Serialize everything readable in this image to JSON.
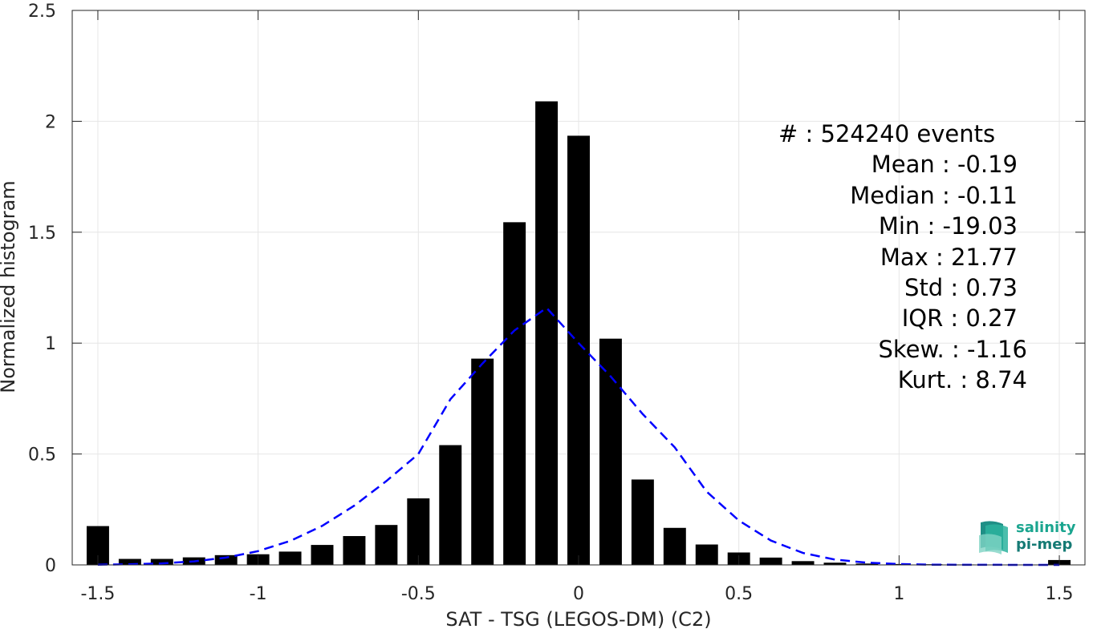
{
  "chart_data": {
    "type": "bar",
    "xlabel": "SAT - TSG (LEGOS-DM) (C2)",
    "ylabel": "Normalized histogram",
    "xlim": [
      -1.58,
      1.58
    ],
    "ylim": [
      0,
      2.5
    ],
    "xticks": [
      -1.5,
      -1,
      -0.5,
      0,
      0.5,
      1,
      1.5
    ],
    "xtick_labels": [
      "-1.5",
      "-1",
      "-0.5",
      "0",
      "0.5",
      "1",
      "1.5"
    ],
    "yticks": [
      0,
      0.5,
      1,
      1.5,
      2,
      2.5
    ],
    "ytick_labels": [
      "0",
      "0.5",
      "1",
      "1.5",
      "2",
      "2.5"
    ],
    "grid": true,
    "bar_color": "#000000",
    "bar_width": 0.07,
    "x": [
      -1.5,
      -1.4,
      -1.3,
      -1.2,
      -1.1,
      -1.0,
      -0.9,
      -0.8,
      -0.7,
      -0.6,
      -0.5,
      -0.4,
      -0.3,
      -0.2,
      -0.1,
      0.0,
      0.1,
      0.2,
      0.3,
      0.4,
      0.5,
      0.6,
      0.7,
      0.8,
      0.9,
      1.0,
      1.1,
      1.2,
      1.3,
      1.4,
      1.5
    ],
    "values": [
      0.175,
      0.027,
      0.027,
      0.034,
      0.044,
      0.048,
      0.06,
      0.09,
      0.13,
      0.18,
      0.3,
      0.54,
      0.93,
      1.545,
      2.09,
      1.935,
      1.02,
      0.385,
      0.167,
      0.092,
      0.056,
      0.033,
      0.017,
      0.01,
      0.006,
      0.004,
      0.003,
      0.002,
      0.001,
      0.001,
      0.022
    ],
    "fit_curve": {
      "style": "dashed",
      "color": "#0000ff",
      "x": [
        -1.5,
        -1.4,
        -1.3,
        -1.2,
        -1.1,
        -1.0,
        -0.9,
        -0.8,
        -0.7,
        -0.6,
        -0.5,
        -0.4,
        -0.3,
        -0.2,
        -0.1,
        0.0,
        0.1,
        0.2,
        0.3,
        0.4,
        0.5,
        0.6,
        0.7,
        0.8,
        0.9,
        1.0,
        1.1,
        1.2,
        1.3,
        1.4,
        1.5
      ],
      "values": [
        0.001,
        0.003,
        0.007,
        0.016,
        0.033,
        0.062,
        0.108,
        0.176,
        0.267,
        0.378,
        0.5,
        0.747,
        0.908,
        1.057,
        1.159,
        1.0,
        0.85,
        0.68,
        0.53,
        0.33,
        0.2,
        0.11,
        0.054,
        0.024,
        0.01,
        0.004,
        0.001,
        0.0005,
        0.0002,
        0.0001,
        0.0
      ]
    }
  },
  "stats": {
    "count": "#  : 524240 events",
    "mean": "Mean : -0.19",
    "median": "Median : -0.11",
    "min": "Min : -19.03",
    "max": "Max : 21.77",
    "std": "Std : 0.73",
    "iqr": "IQR : 0.27",
    "skew": "Skew. : -1.16",
    "kurt": "Kurt. : 8.74"
  },
  "logo": {
    "line1": "salinity",
    "line2": "pi-mep",
    "icon": "salinity-wave-icon"
  }
}
